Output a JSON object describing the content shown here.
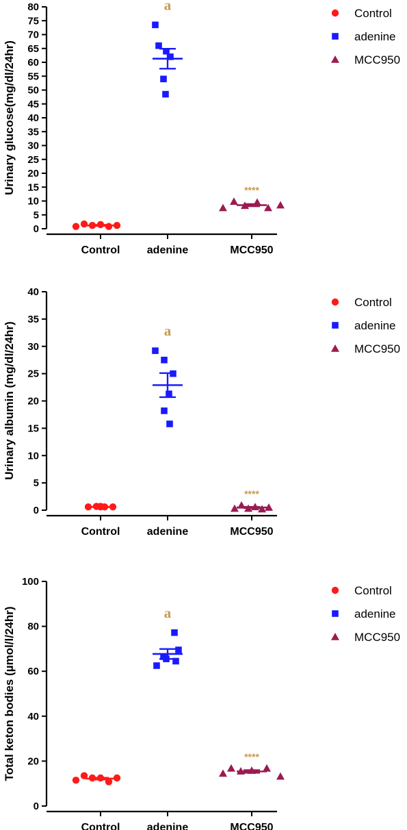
{
  "colors": {
    "control": "#ff1a1a",
    "adenine": "#1a1aff",
    "mcc950": "#9b1b52",
    "annotation": "#c89a4e",
    "axis": "#000000"
  },
  "legend": [
    {
      "label": "Control",
      "marker": "circle",
      "color": "#ff1a1a"
    },
    {
      "label": "adenine",
      "marker": "square",
      "color": "#1a1aff"
    },
    {
      "label": "MCC950",
      "marker": "triangle",
      "color": "#9b1b52"
    }
  ],
  "chart_data": [
    {
      "type": "scatter",
      "ylabel": "Urinary glucose(mg/dl/24hr)",
      "ylim": [
        0,
        80
      ],
      "yticks": [
        0,
        5,
        10,
        15,
        20,
        25,
        30,
        35,
        40,
        45,
        50,
        55,
        60,
        65,
        70,
        75,
        80
      ],
      "categories": [
        "Control",
        "adenine",
        "MCC950"
      ],
      "series": [
        {
          "name": "Control",
          "values": [
            0.8,
            1.7,
            1.2,
            1.5,
            0.8,
            1.2
          ],
          "mean": 1.2,
          "sem": 0.2
        },
        {
          "name": "adenine",
          "values": [
            73.5,
            66.0,
            64.0,
            62.0,
            54.0,
            48.5
          ],
          "mean": 61.3,
          "sem": 3.6
        },
        {
          "name": "MCC950",
          "values": [
            7.5,
            9.8,
            8.3,
            9.5,
            7.5,
            8.5
          ],
          "mean": 8.5,
          "sem": 0.4
        }
      ],
      "annotations": [
        {
          "category": "adenine",
          "text": "a"
        },
        {
          "category": "MCC950",
          "text": "****"
        }
      ]
    },
    {
      "type": "scatter",
      "ylabel": "Urinary albumin (mg/dl/24hr)",
      "ylim": [
        0,
        40
      ],
      "yticks": [
        0,
        5,
        10,
        15,
        20,
        25,
        30,
        35,
        40
      ],
      "categories": [
        "Control",
        "adenine",
        "MCC950"
      ],
      "series": [
        {
          "name": "Control",
          "values": [
            0.6,
            0.7,
            0.6,
            0.6,
            0.6,
            0.7
          ],
          "mean": 0.6,
          "sem": 0.05
        },
        {
          "name": "adenine",
          "values": [
            29.2,
            27.5,
            25.0,
            21.3,
            18.2,
            15.8
          ],
          "mean": 22.9,
          "sem": 2.2
        },
        {
          "name": "MCC950",
          "values": [
            0.3,
            0.9,
            0.3,
            0.6,
            0.2,
            0.5
          ],
          "mean": 0.5,
          "sem": 0.1
        }
      ],
      "annotations": [
        {
          "category": "adenine",
          "text": "a"
        },
        {
          "category": "MCC950",
          "text": "****"
        }
      ]
    },
    {
      "type": "scatter",
      "ylabel": "Total keton bodies (µmol/l/24hr)",
      "ylim": [
        0,
        100
      ],
      "yticks": [
        0,
        20,
        40,
        60,
        80,
        100
      ],
      "categories": [
        "Control",
        "adenine",
        "MCC950"
      ],
      "series": [
        {
          "name": "Control",
          "values": [
            11.5,
            13.5,
            12.5,
            12.5,
            10.8,
            12.5
          ],
          "mean": 12.2,
          "sem": 0.4
        },
        {
          "name": "adenine",
          "values": [
            62.5,
            66.5,
            77.2,
            65.5,
            69.5,
            64.5
          ],
          "mean": 67.7,
          "sem": 2.2
        },
        {
          "name": "MCC950",
          "values": [
            14.5,
            16.8,
            15.5,
            15.8,
            16.8,
            13.2
          ],
          "mean": 15.4,
          "sem": 0.6
        }
      ],
      "annotations": [
        {
          "category": "adenine",
          "text": "a"
        },
        {
          "category": "MCC950",
          "text": "****"
        }
      ]
    }
  ]
}
